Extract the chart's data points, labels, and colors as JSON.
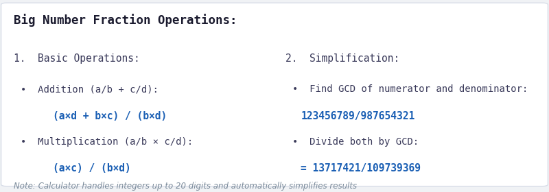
{
  "bg_color": "#f0f2f5",
  "box_color": "#ffffff",
  "title": "Big Number Fraction Operations:",
  "title_color": "#1a1a2e",
  "title_fontsize": 12.5,
  "section1_header": "1.  Basic Operations:",
  "section2_header": "2.  Simplification:",
  "section_color": "#3a3a5a",
  "section_fontsize": 10.5,
  "bullet_color": "#3a3a5a",
  "bullet_fontsize": 10,
  "formula_color": "#1a5fb4",
  "formula_fontsize": 10.5,
  "left_line1": "•  Addition (a/b + c/d):",
  "left_line2": "    (a×d + b×c) / (b×d)",
  "left_line3": "•  Multiplication (a/b × c/d):",
  "left_line4": "    (a×c) / (b×d)",
  "right_line1": "•  Find GCD of numerator and denominator:",
  "right_line2": "123456789/987654321",
  "right_line3": "•  Divide both by GCD:",
  "right_line4": "= 13717421/109739369",
  "note": "Note: Calculator handles integers up to 20 digits and automatically simplifies results",
  "note_color": "#7a8a9a",
  "note_fontsize": 8.5,
  "border_color": "#d8dde8"
}
